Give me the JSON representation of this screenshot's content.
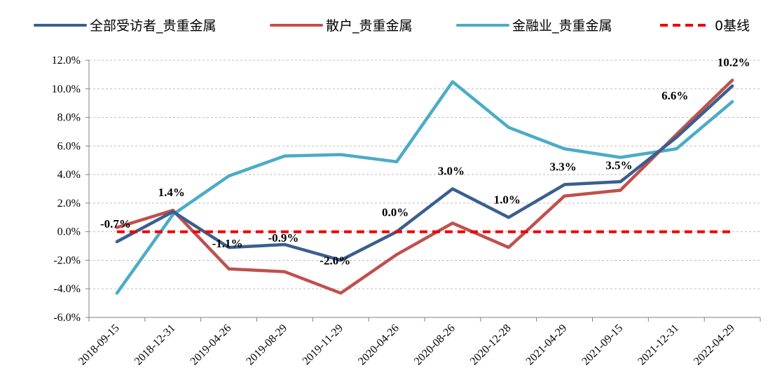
{
  "chart_data": {
    "type": "line",
    "title": "",
    "xlabel": "",
    "ylabel": "",
    "categories": [
      "2018-09-15",
      "2018-12-31",
      "2019-04-26",
      "2019-08-29",
      "2019-11-29",
      "2020-04-26",
      "2020-08-26",
      "2020-12-28",
      "2021-04-29",
      "2021-09-15",
      "2021-12-31",
      "2022-04-29"
    ],
    "ylim": [
      -6,
      12
    ],
    "yticks": [
      -6,
      -4,
      -2,
      0,
      2,
      4,
      6,
      8,
      10,
      12
    ],
    "ytick_labels": [
      "-6.0%",
      "-4.0%",
      "-2.0%",
      "0.0%",
      "2.0%",
      "4.0%",
      "6.0%",
      "8.0%",
      "10.0%",
      "12.0%"
    ],
    "grid": "horizontal dashed",
    "legend_position": "top",
    "series": [
      {
        "name": "全部受访者_贵重金属",
        "color": "#3A5F8F",
        "style": "solid",
        "values": [
          -0.7,
          1.4,
          -1.1,
          -0.9,
          -2.0,
          0.0,
          3.0,
          1.0,
          3.3,
          3.5,
          6.6,
          10.2
        ],
        "data_labels": [
          "-0.7%",
          "1.4%",
          "-1.1%",
          "-0.9%",
          "-2.0%",
          "0.0%",
          "3.0%",
          "1.0%",
          "3.3%",
          "3.5%",
          "6.6%",
          "10.2%"
        ]
      },
      {
        "name": "散户_贵重金属",
        "color": "#C0504D",
        "style": "solid",
        "values": [
          0.3,
          1.5,
          -2.6,
          -2.8,
          -4.3,
          -1.6,
          0.6,
          -1.1,
          2.5,
          2.9,
          6.8,
          10.6
        ]
      },
      {
        "name": "金融业_贵重金属",
        "color": "#4BACC6",
        "style": "solid",
        "values": [
          -4.3,
          1.2,
          3.9,
          5.3,
          5.4,
          4.9,
          10.5,
          7.3,
          5.8,
          5.2,
          5.8,
          9.1
        ]
      },
      {
        "name": "0基线",
        "color": "#EE0000",
        "style": "dashed",
        "values": [
          0,
          0,
          0,
          0,
          0,
          0,
          0,
          0,
          0,
          0,
          0,
          0
        ]
      }
    ]
  }
}
